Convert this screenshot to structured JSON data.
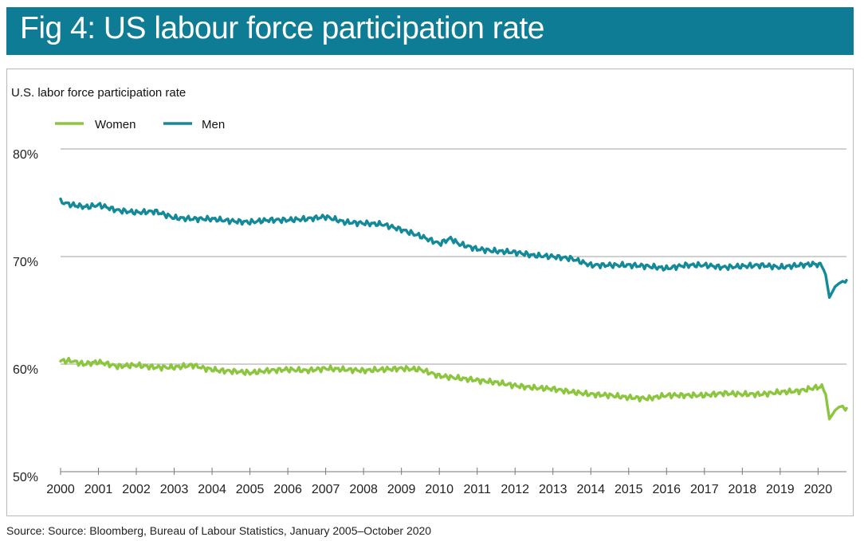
{
  "header": {
    "title": "Fig 4: US labour force participation rate",
    "background_color": "#0f7c96"
  },
  "source": "Source: Source: Bloomberg, Bureau of Labour Statistics, January 2005–October 2020",
  "chart_data": {
    "type": "line",
    "title": "U.S. labor force participation rate",
    "xlabel": "",
    "ylabel": "",
    "xlim": [
      2000,
      2020.75
    ],
    "ylim": [
      50,
      80
    ],
    "y_ticks": [
      50,
      60,
      70,
      80
    ],
    "y_tick_labels": [
      "50%",
      "60%",
      "70%",
      "80%"
    ],
    "x_ticks": [
      2000,
      2001,
      2002,
      2003,
      2004,
      2005,
      2006,
      2007,
      2008,
      2009,
      2010,
      2011,
      2012,
      2013,
      2014,
      2015,
      2016,
      2017,
      2018,
      2019,
      2020
    ],
    "x_tick_labels": [
      "2000",
      "2001",
      "2002",
      "2003",
      "2004",
      "2005",
      "2006",
      "2007",
      "2008",
      "2009",
      "2010",
      "2011",
      "2012",
      "2013",
      "2014",
      "2015",
      "2016",
      "2017",
      "2018",
      "2019",
      "2020"
    ],
    "grid": true,
    "legend_position": "top-left",
    "series": [
      {
        "name": "Women",
        "color": "#8cc63f",
        "points": [
          [
            2000.0,
            60.3
          ],
          [
            2000.3,
            60.3
          ],
          [
            2000.6,
            60.0
          ],
          [
            2001.0,
            60.2
          ],
          [
            2001.5,
            59.8
          ],
          [
            2002.0,
            59.9
          ],
          [
            2002.5,
            59.7
          ],
          [
            2003.0,
            59.7
          ],
          [
            2003.5,
            59.9
          ],
          [
            2003.8,
            59.6
          ],
          [
            2004.2,
            59.4
          ],
          [
            2004.7,
            59.3
          ],
          [
            2005.0,
            59.2
          ],
          [
            2005.5,
            59.4
          ],
          [
            2006.0,
            59.5
          ],
          [
            2006.5,
            59.4
          ],
          [
            2007.0,
            59.6
          ],
          [
            2007.5,
            59.5
          ],
          [
            2008.0,
            59.4
          ],
          [
            2008.5,
            59.5
          ],
          [
            2009.0,
            59.6
          ],
          [
            2009.5,
            59.5
          ],
          [
            2010.0,
            58.9
          ],
          [
            2010.5,
            58.7
          ],
          [
            2011.0,
            58.5
          ],
          [
            2011.5,
            58.3
          ],
          [
            2012.0,
            58.0
          ],
          [
            2012.5,
            57.8
          ],
          [
            2013.0,
            57.7
          ],
          [
            2013.5,
            57.4
          ],
          [
            2014.0,
            57.2
          ],
          [
            2014.5,
            57.1
          ],
          [
            2015.0,
            56.9
          ],
          [
            2015.5,
            56.8
          ],
          [
            2016.0,
            57.1
          ],
          [
            2016.5,
            57.1
          ],
          [
            2017.0,
            57.1
          ],
          [
            2017.5,
            57.3
          ],
          [
            2018.0,
            57.2
          ],
          [
            2018.5,
            57.2
          ],
          [
            2019.0,
            57.4
          ],
          [
            2019.5,
            57.5
          ],
          [
            2019.9,
            57.8
          ],
          [
            2020.1,
            57.9
          ],
          [
            2020.2,
            57.2
          ],
          [
            2020.3,
            54.9
          ],
          [
            2020.45,
            55.7
          ],
          [
            2020.55,
            56.0
          ],
          [
            2020.65,
            56.1
          ],
          [
            2020.72,
            55.7
          ],
          [
            2020.75,
            55.9
          ]
        ]
      },
      {
        "name": "Men",
        "color": "#138a9a",
        "points": [
          [
            2000.0,
            75.1
          ],
          [
            2000.3,
            74.8
          ],
          [
            2000.7,
            74.6
          ],
          [
            2001.0,
            74.8
          ],
          [
            2001.5,
            74.3
          ],
          [
            2002.0,
            74.1
          ],
          [
            2002.5,
            74.2
          ],
          [
            2003.0,
            73.6
          ],
          [
            2003.5,
            73.5
          ],
          [
            2004.0,
            73.5
          ],
          [
            2004.5,
            73.3
          ],
          [
            2005.0,
            73.2
          ],
          [
            2005.5,
            73.4
          ],
          [
            2006.0,
            73.4
          ],
          [
            2006.5,
            73.5
          ],
          [
            2007.0,
            73.7
          ],
          [
            2007.5,
            73.2
          ],
          [
            2008.0,
            73.1
          ],
          [
            2008.5,
            73.0
          ],
          [
            2009.0,
            72.5
          ],
          [
            2009.5,
            71.9
          ],
          [
            2010.0,
            71.2
          ],
          [
            2010.3,
            71.7
          ],
          [
            2010.5,
            71.2
          ],
          [
            2011.0,
            70.7
          ],
          [
            2011.5,
            70.5
          ],
          [
            2012.0,
            70.4
          ],
          [
            2012.5,
            70.1
          ],
          [
            2013.0,
            70.0
          ],
          [
            2013.5,
            69.8
          ],
          [
            2014.0,
            69.2
          ],
          [
            2014.5,
            69.2
          ],
          [
            2015.0,
            69.2
          ],
          [
            2015.5,
            69.1
          ],
          [
            2016.0,
            68.9
          ],
          [
            2016.5,
            69.2
          ],
          [
            2017.0,
            69.2
          ],
          [
            2017.5,
            69.0
          ],
          [
            2018.0,
            69.1
          ],
          [
            2018.5,
            69.2
          ],
          [
            2019.0,
            69.0
          ],
          [
            2019.5,
            69.2
          ],
          [
            2019.9,
            69.3
          ],
          [
            2020.1,
            69.2
          ],
          [
            2020.2,
            68.3
          ],
          [
            2020.3,
            66.2
          ],
          [
            2020.45,
            67.2
          ],
          [
            2020.55,
            67.5
          ],
          [
            2020.65,
            67.7
          ],
          [
            2020.72,
            67.6
          ],
          [
            2020.75,
            67.8
          ]
        ]
      }
    ]
  }
}
